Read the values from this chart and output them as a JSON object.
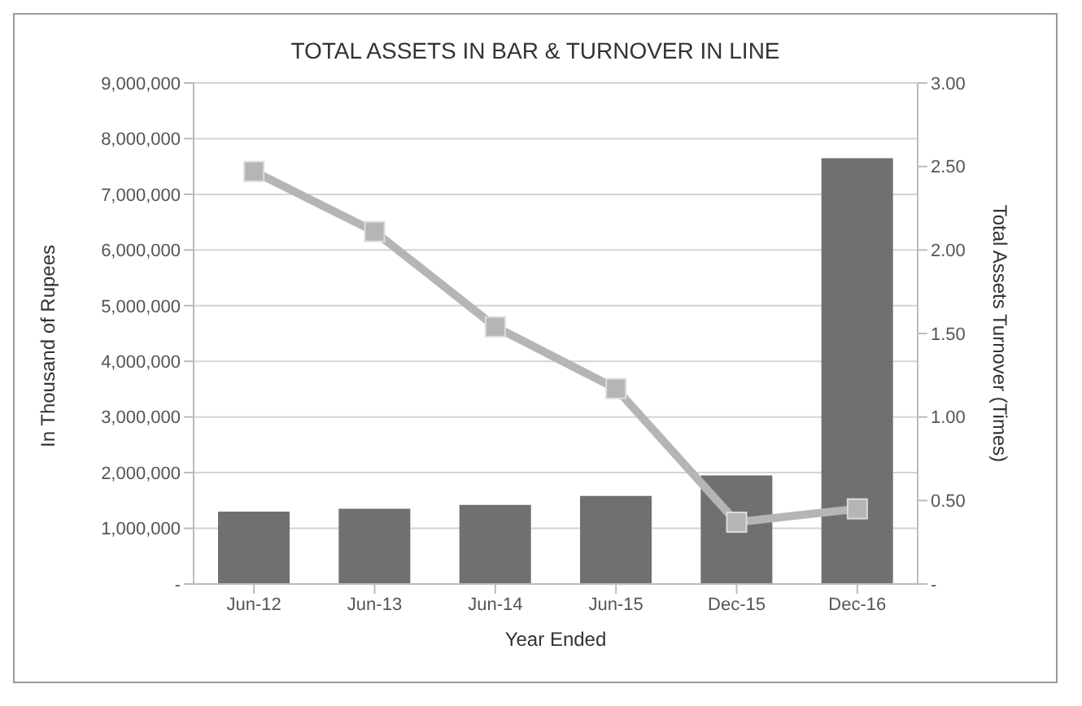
{
  "chart_data": {
    "type": "bar",
    "title": "TOTAL ASSETS IN BAR & TURNOVER IN LINE",
    "xlabel": "Year Ended",
    "ylabel": "In Thousand of Rupees",
    "y2label": "Total Assets Turnover (Times)",
    "categories": [
      "Jun-12",
      "Jun-13",
      "Jun-14",
      "Jun-15",
      "Dec-15",
      "Dec-16"
    ],
    "series": [
      {
        "color": "#707070",
        "values": [
          1300000,
          1350000,
          1420000,
          1580000,
          1950000,
          7650000
        ]
      },
      {
        "type": "line",
        "axis": "y2",
        "color": "#b5b5b5",
        "marker": "square",
        "values": [
          2.47,
          2.11,
          1.54,
          1.17,
          0.37,
          0.45
        ]
      }
    ],
    "ylim": [
      0,
      9000000
    ],
    "yticks": [
      {
        "value": 0,
        "label": "-"
      },
      {
        "value": 1000000,
        "label": "1,000,000"
      },
      {
        "value": 2000000,
        "label": "2,000,000"
      },
      {
        "value": 3000000,
        "label": "3,000,000"
      },
      {
        "value": 4000000,
        "label": "4,000,000"
      },
      {
        "value": 5000000,
        "label": "5,000,000"
      },
      {
        "value": 6000000,
        "label": "6,000,000"
      },
      {
        "value": 7000000,
        "label": "7,000,000"
      },
      {
        "value": 8000000,
        "label": "8,000,000"
      },
      {
        "value": 9000000,
        "label": "9,000,000"
      }
    ],
    "y2lim": [
      0,
      3
    ],
    "y2ticks": [
      {
        "value": 0,
        "label": "-"
      },
      {
        "value": 0.5,
        "label": "0.50"
      },
      {
        "value": 1,
        "label": "1.00"
      },
      {
        "value": 1.5,
        "label": "1.50"
      },
      {
        "value": 2,
        "label": "2.00"
      },
      {
        "value": 2.5,
        "label": "2.50"
      },
      {
        "value": 3,
        "label": "3.00"
      }
    ],
    "grid": "y",
    "legend": false
  }
}
